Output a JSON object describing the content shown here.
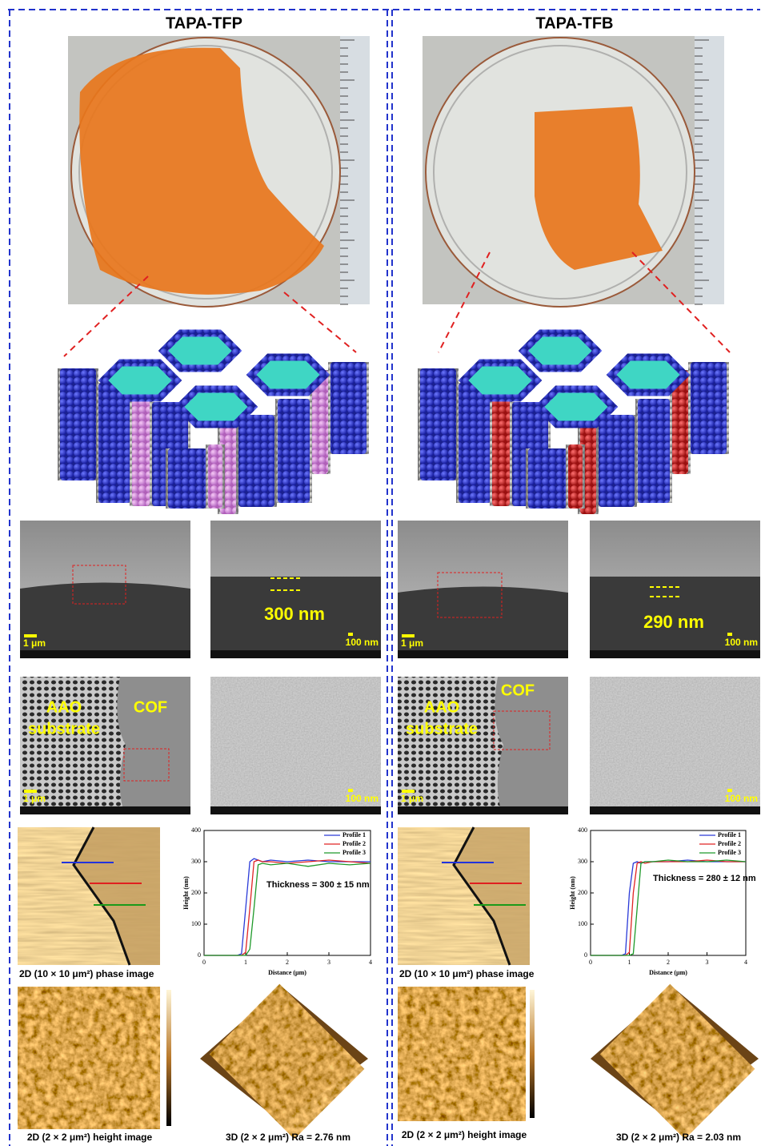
{
  "panels": [
    {
      "title": "TAPA-TFP",
      "sem_cross": {
        "scale_low": "1 μm",
        "thickness": "300 nm",
        "scale_high": "100 nm"
      },
      "sem_surface": {
        "substrate_line1": "AAO",
        "substrate_line2": "substrate",
        "cof": "COF",
        "scale_low": "1 μm",
        "scale_high": "100 nm"
      },
      "phase_caption": "2D (10 × 10 μm²) phase image",
      "profile": {
        "type": "line",
        "y_label": "Height (nm)",
        "x_label": "Distance (μm)",
        "annotation": "Thickness = 300 ± 15 nm",
        "x": [
          0,
          0.8,
          0.9,
          1.0,
          1.1,
          1.2,
          1.3,
          1.4,
          1.6,
          2,
          2.5,
          3,
          3.5,
          4
        ],
        "series": [
          {
            "name": "Profile 1",
            "color": "#2a3ad8",
            "values": [
              0,
              0,
              5,
              150,
              300,
              310,
              305,
              300,
              305,
              300,
              305,
              300,
              300,
              300
            ]
          },
          {
            "name": "Profile 2",
            "color": "#e02424",
            "values": [
              0,
              0,
              0,
              10,
              150,
              300,
              305,
              300,
              300,
              295,
              300,
              305,
              300,
              295
            ]
          },
          {
            "name": "Profile 3",
            "color": "#1f9a2a",
            "values": [
              0,
              0,
              0,
              0,
              20,
              150,
              290,
              295,
              290,
              295,
              285,
              295,
              290,
              295
            ]
          }
        ],
        "xlim": [
          0,
          4
        ],
        "ylim": [
          0,
          400
        ],
        "xticks": [
          0,
          1,
          2,
          3,
          4
        ],
        "yticks": [
          0,
          100,
          200,
          300,
          400
        ]
      },
      "height_caption": "2D (2 × 2 μm²) height image",
      "caption_3d": "3D (2 × 2 μm²) Ra = 2.76 nm"
    },
    {
      "title": "TAPA-TFB",
      "sem_cross": {
        "scale_low": "1 μm",
        "thickness": "290 nm",
        "scale_high": "100 nm"
      },
      "sem_surface": {
        "substrate_line1": "AAO",
        "substrate_line2": "substrate",
        "cof": "COF",
        "scale_low": "1 μm",
        "scale_high": "100 nm"
      },
      "phase_caption": "2D (10 × 10 μm²) phase image",
      "profile": {
        "type": "line",
        "y_label": "Height (nm)",
        "x_label": "Distance (μm)",
        "annotation": "Thickness = 280 ± 12 nm",
        "x": [
          0,
          0.8,
          0.9,
          1.0,
          1.1,
          1.2,
          1.3,
          1.4,
          1.6,
          2,
          2.5,
          3,
          3.5,
          4
        ],
        "series": [
          {
            "name": "Profile 1",
            "color": "#2a3ad8",
            "values": [
              0,
              0,
              5,
              200,
              295,
              300,
              295,
              300,
              300,
              300,
              305,
              300,
              300,
              300
            ]
          },
          {
            "name": "Profile 2",
            "color": "#e02424",
            "values": [
              0,
              0,
              0,
              10,
              200,
              295,
              300,
              295,
              300,
              300,
              300,
              305,
              300,
              300
            ]
          },
          {
            "name": "Profile 3",
            "color": "#1f9a2a",
            "values": [
              0,
              0,
              0,
              0,
              5,
              150,
              295,
              300,
              300,
              305,
              300,
              300,
              305,
              300
            ]
          }
        ],
        "xlim": [
          0,
          4
        ],
        "ylim": [
          0,
          400
        ],
        "xticks": [
          0,
          1,
          2,
          3,
          4
        ],
        "yticks": [
          0,
          100,
          200,
          300,
          400
        ]
      },
      "height_caption": "2D (2 × 2 μm²) height image",
      "caption_3d": "3D (2 × 2 μm²) Ra = 2.03 nm"
    }
  ]
}
